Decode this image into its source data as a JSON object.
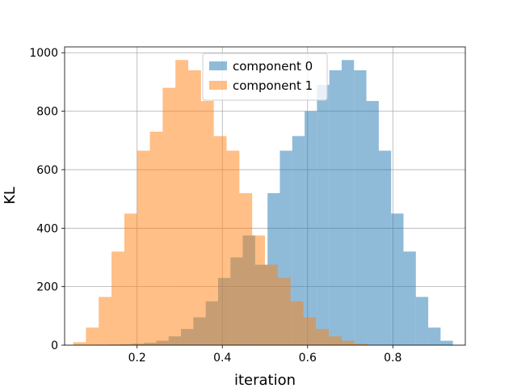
{
  "chart_data": {
    "type": "bar",
    "xlabel": "iteration",
    "ylabel": "KL",
    "xlim": [
      0.03,
      0.97
    ],
    "ylim": [
      0,
      1020
    ],
    "xticks": [
      0.2,
      0.4,
      0.6,
      0.8
    ],
    "xtick_labels": [
      "0.2",
      "0.4",
      "0.6",
      "0.8"
    ],
    "yticks": [
      0,
      200,
      400,
      600,
      800,
      1000
    ],
    "ytick_labels": [
      "0",
      "200",
      "400",
      "600",
      "800",
      "1000"
    ],
    "grid": true,
    "legend_placement": "upper-center",
    "series": [
      {
        "name": "component 0",
        "color": "#1f77b4",
        "alpha": 0.5,
        "bin_edges": [
          0.1,
          0.129,
          0.158,
          0.187,
          0.216,
          0.245,
          0.274,
          0.303,
          0.332,
          0.361,
          0.39,
          0.419,
          0.448,
          0.477,
          0.506,
          0.535,
          0.564,
          0.593,
          0.622,
          0.651,
          0.68,
          0.709,
          0.738,
          0.767,
          0.796,
          0.825,
          0.854,
          0.883,
          0.912,
          0.941
        ],
        "counts": [
          1,
          2,
          3,
          5,
          8,
          15,
          30,
          55,
          95,
          150,
          230,
          300,
          375,
          275,
          520,
          665,
          715,
          800,
          890,
          940,
          975,
          940,
          835,
          665,
          450,
          320,
          165,
          60,
          15
        ]
      },
      {
        "name": "component 1",
        "color": "#ff7f0e",
        "alpha": 0.5,
        "bin_edges": [
          0.05,
          0.08,
          0.11,
          0.14,
          0.17,
          0.2,
          0.23,
          0.26,
          0.29,
          0.32,
          0.35,
          0.38,
          0.41,
          0.44,
          0.47,
          0.5,
          0.53,
          0.56,
          0.59,
          0.62,
          0.65,
          0.68,
          0.71,
          0.74
        ],
        "counts": [
          10,
          60,
          165,
          320,
          450,
          665,
          730,
          880,
          975,
          940,
          835,
          715,
          665,
          520,
          375,
          275,
          230,
          150,
          95,
          55,
          30,
          15,
          5
        ]
      }
    ]
  }
}
